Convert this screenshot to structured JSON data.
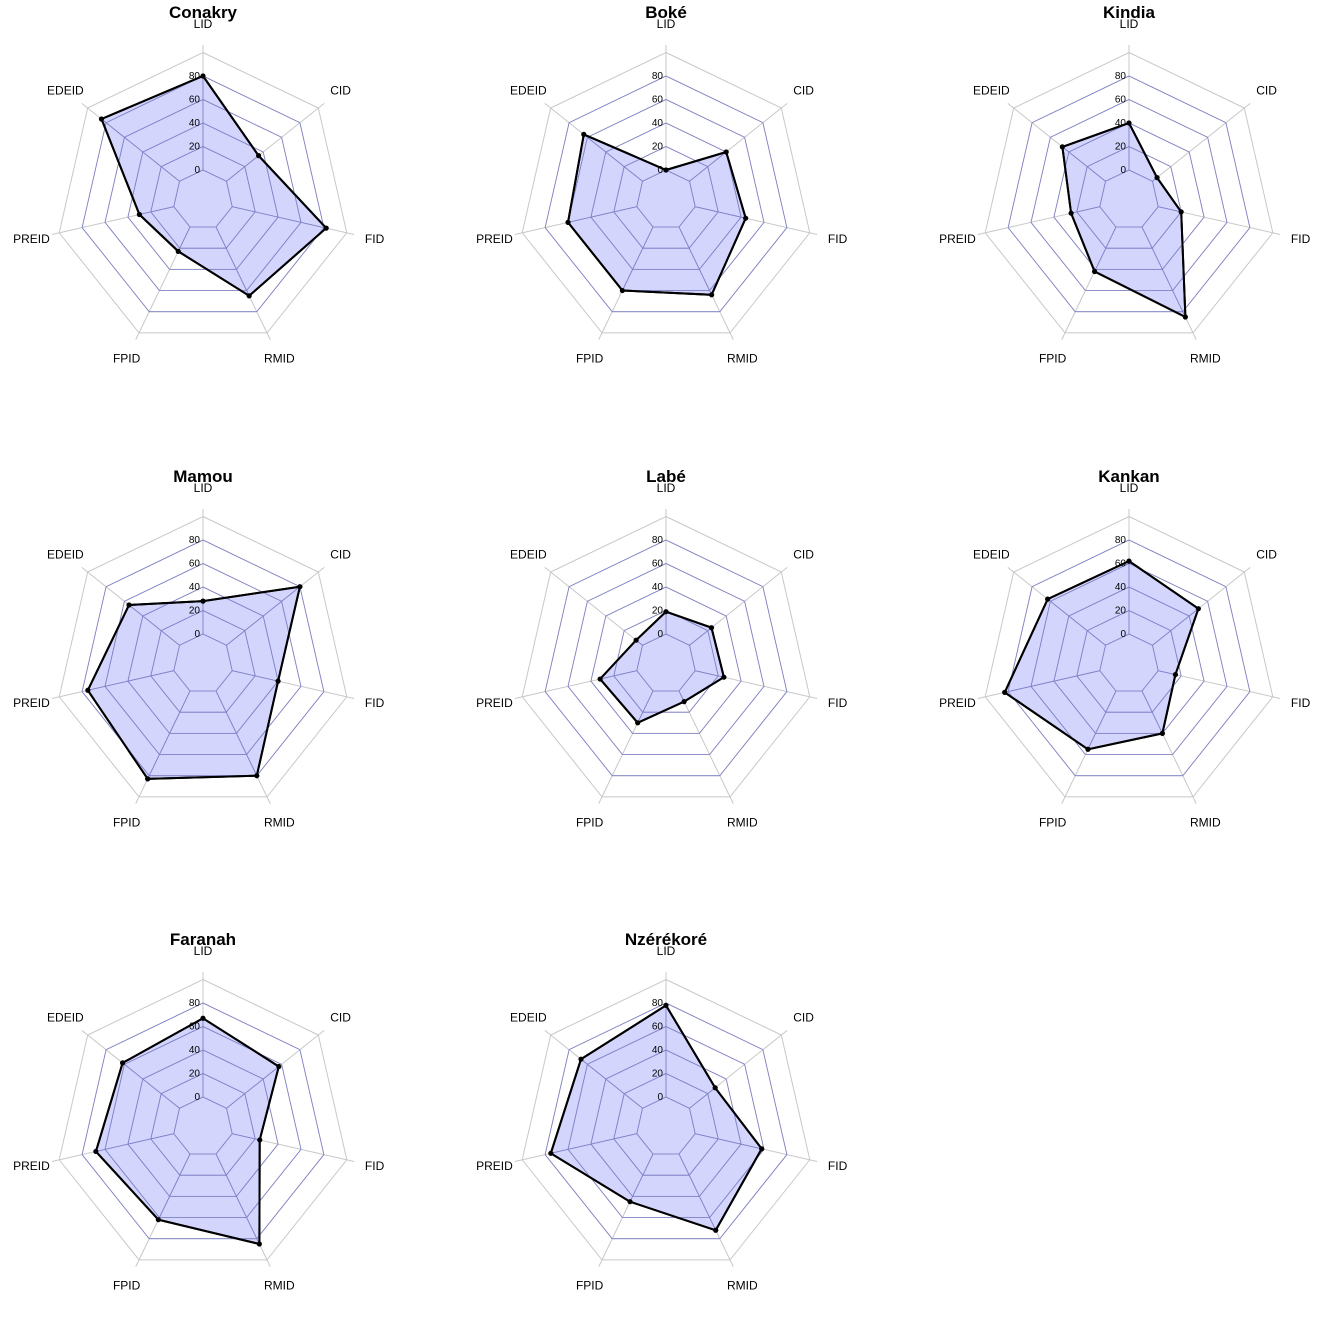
{
  "chart_data": [
    {
      "type": "radar",
      "title": "Conakry",
      "axes": [
        "LID",
        "CID",
        "FID",
        "RMID",
        "FPID",
        "PREID",
        "EDEID"
      ],
      "ticks": [
        "0",
        "20",
        "40",
        "60",
        "80"
      ],
      "rlim": [
        0,
        80
      ],
      "values": [
        80,
        35,
        82,
        65,
        23,
        30,
        85
      ],
      "fill_color": "#6e73fa",
      "line_color": "#000000"
    },
    {
      "type": "radar",
      "title": "Boké",
      "axes": [
        "LID",
        "CID",
        "FID",
        "RMID",
        "FPID",
        "PREID",
        "EDEID"
      ],
      "ticks": [
        "0",
        "20",
        "40",
        "60",
        "80"
      ],
      "rlim": [
        0,
        80
      ],
      "values": [
        0,
        40,
        44,
        64,
        60,
        60,
        64
      ],
      "fill_color": "#6e73fa",
      "line_color": "#000000"
    },
    {
      "type": "radar",
      "title": "Kindia",
      "axes": [
        "LID",
        "CID",
        "FID",
        "RMID",
        "FPID",
        "PREID",
        "EDEID"
      ],
      "ticks": [
        "0",
        "20",
        "40",
        "60",
        "80"
      ],
      "rlim": [
        0,
        80
      ],
      "values": [
        40,
        5,
        20,
        85,
        42,
        25,
        47
      ],
      "fill_color": "#6e73fa",
      "line_color": "#000000"
    },
    {
      "type": "radar",
      "title": "Mamou",
      "axes": [
        "LID",
        "CID",
        "FID",
        "RMID",
        "FPID",
        "PREID",
        "EDEID"
      ],
      "ticks": [
        "0",
        "20",
        "40",
        "60",
        "80"
      ],
      "rlim": [
        0,
        80
      ],
      "values": [
        28,
        80,
        40,
        80,
        83,
        75,
        55
      ],
      "fill_color": "#6e73fa",
      "line_color": "#000000"
    },
    {
      "type": "radar",
      "title": "Labé",
      "axes": [
        "LID",
        "CID",
        "FID",
        "RMID",
        "FPID",
        "PREID",
        "EDEID"
      ],
      "ticks": [
        "0",
        "20",
        "40",
        "60",
        "80"
      ],
      "rlim": [
        0,
        80
      ],
      "values": [
        19,
        24,
        25,
        10,
        30,
        32,
        7
      ],
      "fill_color": "#6e73fa",
      "line_color": "#000000"
    },
    {
      "type": "radar",
      "title": "Kankan",
      "axes": [
        "LID",
        "CID",
        "FID",
        "RMID",
        "FPID",
        "PREID",
        "EDEID"
      ],
      "ticks": [
        "0",
        "20",
        "40",
        "60",
        "80"
      ],
      "rlim": [
        0,
        80
      ],
      "values": [
        62,
        50,
        15,
        40,
        55,
        83,
        63
      ],
      "fill_color": "#6e73fa",
      "line_color": "#000000"
    },
    {
      "type": "radar",
      "title": "Faranah",
      "axes": [
        "LID",
        "CID",
        "FID",
        "RMID",
        "FPID",
        "PREID",
        "EDEID"
      ],
      "ticks": [
        "0",
        "20",
        "40",
        "60",
        "80"
      ],
      "rlim": [
        0,
        80
      ],
      "values": [
        67,
        57,
        24,
        85,
        62,
        68,
        62
      ],
      "fill_color": "#6e73fa",
      "line_color": "#000000"
    },
    {
      "type": "radar",
      "title": "Nzérékoré",
      "axes": [
        "LID",
        "CID",
        "FID",
        "RMID",
        "FPID",
        "PREID",
        "EDEID"
      ],
      "ticks": [
        "0",
        "20",
        "40",
        "60",
        "80"
      ],
      "rlim": [
        0,
        80
      ],
      "values": [
        78,
        28,
        58,
        72,
        45,
        75,
        67
      ],
      "fill_color": "#6e73fa",
      "line_color": "#000000"
    }
  ]
}
